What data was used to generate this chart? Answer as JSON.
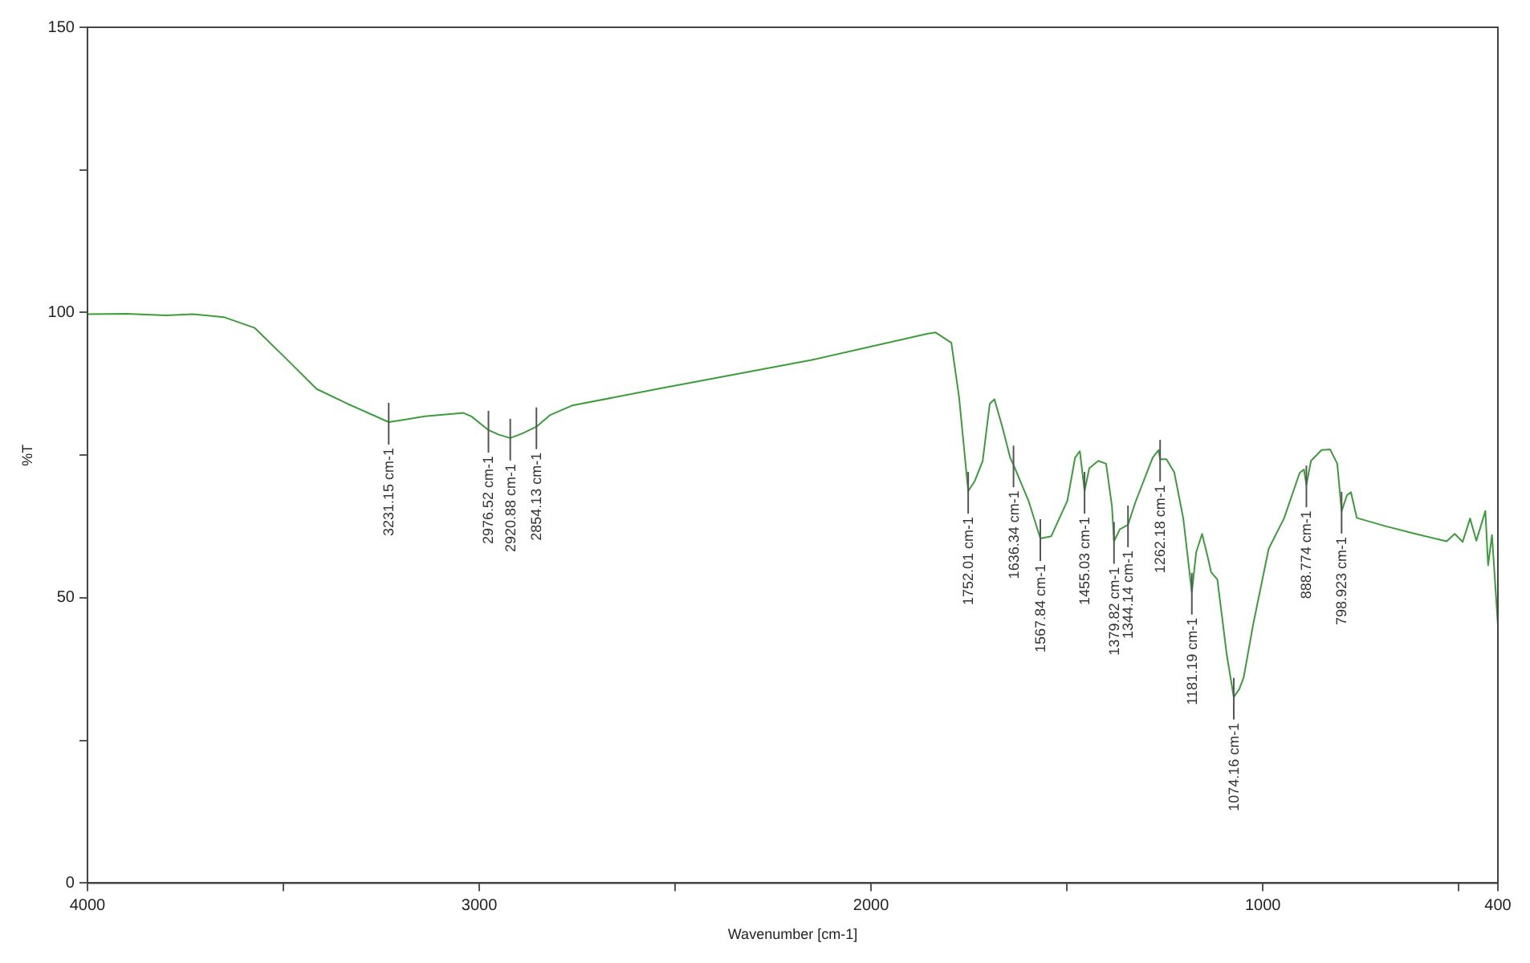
{
  "chart_data": {
    "type": "line",
    "xlabel": "Wavenumber [cm-1]",
    "ylabel": "%T",
    "xlim": [
      4000,
      400
    ],
    "xticks": [
      4000,
      {
        "value": 3500,
        "label": null
      },
      3000,
      {
        "value": 2500,
        "label": null
      },
      2000,
      {
        "value": 1500,
        "label": null
      },
      1000,
      {
        "value": 500,
        "label": null
      },
      400
    ],
    "ylim": [
      0,
      150
    ],
    "yticks": [
      0,
      {
        "value": 25,
        "label": null
      },
      50,
      {
        "value": 75,
        "label": null
      },
      100,
      {
        "value": 125,
        "label": null
      },
      150
    ],
    "grid": false,
    "legend": false,
    "marker": "none",
    "line_style": "solid",
    "series": [
      {
        "color": "#3c9c3c",
        "x": [
          4000,
          3900,
          3800,
          3731,
          3652,
          3573,
          3494,
          3415,
          3336,
          3231,
          3139,
          3040,
          3020,
          2976.5,
          2950,
          2920.9,
          2890,
          2854.1,
          2820,
          2763,
          2546,
          2151,
          1855,
          1835,
          1795,
          1775,
          1752,
          1735,
          1715,
          1697,
          1685,
          1665,
          1645,
          1636.3,
          1598,
          1567.8,
          1540,
          1499,
          1479,
          1467,
          1455,
          1443,
          1420,
          1400,
          1385,
          1379.8,
          1365,
          1344.1,
          1325,
          1281,
          1266,
          1262.2,
          1246,
          1226,
          1203,
          1181.2,
          1170,
          1155,
          1140,
          1132,
          1116,
          1092,
          1074.2,
          1060,
          1049,
          1025,
          985,
          946,
          906,
          895,
          888.8,
          877,
          850,
          828,
          810,
          798.9,
          785,
          775,
          760,
          689,
          610,
          531,
          510,
          490,
          471,
          455,
          432,
          425,
          415,
          400
        ],
        "values": [
          99.7,
          99.8,
          99.5,
          99.7,
          99.2,
          97.3,
          92,
          86.6,
          84,
          80.8,
          81.8,
          82.4,
          81.8,
          79.4,
          78.6,
          78,
          78.8,
          80,
          82,
          83.7,
          86.6,
          91.7,
          96.3,
          96.5,
          94.7,
          85,
          68.7,
          70.5,
          74,
          84,
          84.8,
          80,
          74.6,
          73.3,
          67,
          60.4,
          60.8,
          67,
          74.6,
          75.7,
          68.7,
          72.7,
          74,
          73.5,
          66,
          59.9,
          62,
          62.8,
          66.8,
          74.6,
          75.9,
          74.3,
          74.3,
          72,
          63.9,
          51,
          58,
          61.2,
          57,
          54.5,
          53.2,
          40,
          32.6,
          34,
          36,
          45.2,
          58.6,
          63.9,
          71.9,
          72.5,
          69.8,
          74,
          75.9,
          76,
          73.5,
          65.2,
          68,
          68.5,
          64,
          62.6,
          61.2,
          59.9,
          61.2,
          59.8,
          63.9,
          60,
          65.2,
          55.7,
          61,
          45.2
        ]
      }
    ],
    "annotations": [
      {
        "text": "3231.15 cm-1",
        "x": 3231.15,
        "y": 80.8
      },
      {
        "text": "2976.52 cm-1",
        "x": 2976.52,
        "y": 79.4
      },
      {
        "text": "2920.88 cm-1",
        "x": 2920.88,
        "y": 78
      },
      {
        "text": "2854.13 cm-1",
        "x": 2854.13,
        "y": 80
      },
      {
        "text": "1752.01 cm-1",
        "x": 1752.01,
        "y": 68.7
      },
      {
        "text": "1636.34 cm-1",
        "x": 1636.34,
        "y": 73.3
      },
      {
        "text": "1567.84 cm-1",
        "x": 1567.84,
        "y": 60.4
      },
      {
        "text": "1455.03 cm-1",
        "x": 1455.03,
        "y": 68.7
      },
      {
        "text": "1379.82 cm-1",
        "x": 1379.82,
        "y": 59.9
      },
      {
        "text": "1344.14 cm-1",
        "x": 1344.14,
        "y": 62.8
      },
      {
        "text": "1262.18 cm-1",
        "x": 1262.18,
        "y": 74.3
      },
      {
        "text": "1181.19 cm-1",
        "x": 1181.19,
        "y": 51
      },
      {
        "text": "1074.16 cm-1",
        "x": 1074.16,
        "y": 32.6
      },
      {
        "text": "888.774 cm-1",
        "x": 888.774,
        "y": 69.8
      },
      {
        "text": "798.923 cm-1",
        "x": 798.923,
        "y": 65.2
      }
    ]
  }
}
